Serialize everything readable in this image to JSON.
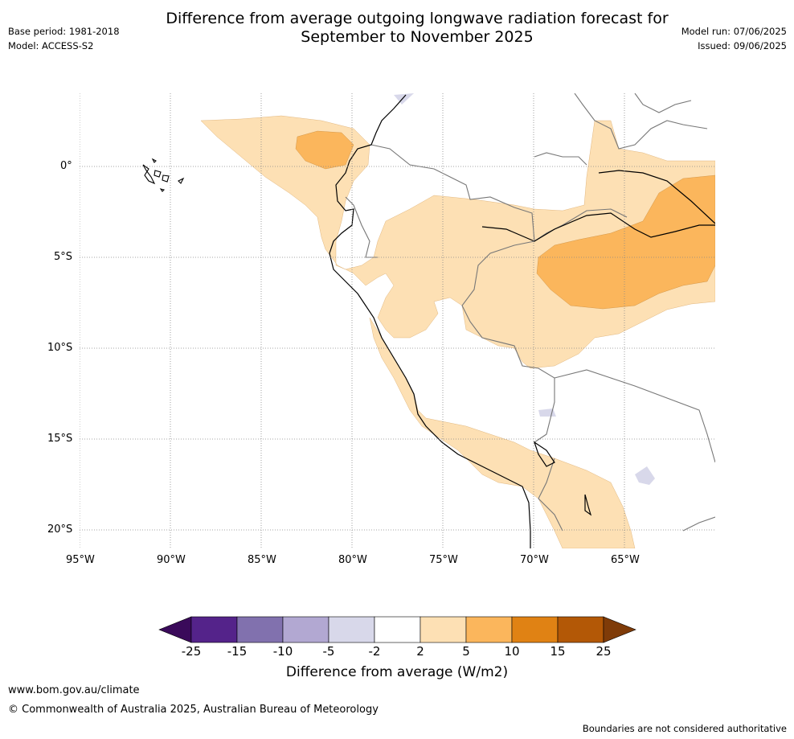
{
  "header": {
    "title_line1": "Difference from average outgoing longwave radiation forecast for",
    "title_line2": "September to November 2025",
    "base_period": "Base period: 1981-2018",
    "model": "Model: ACCESS-S2",
    "model_run": "Model run: 07/06/2025",
    "issued": "Issued: 09/06/2025"
  },
  "map": {
    "region": "Western South America (Peru)",
    "lon_labels": [
      "95°W",
      "90°W",
      "85°W",
      "80°W",
      "75°W",
      "70°W",
      "65°W"
    ],
    "lat_labels": [
      "0°",
      "5°S",
      "10°S",
      "15°S",
      "20°S"
    ],
    "anomaly_colors": {
      "2_to_5": "#fde0b4",
      "5_to_10": "#fbb65c",
      "-5_to_-2": "#d8d8ea"
    }
  },
  "colorbar": {
    "label": "Difference from average (W/m2)",
    "ticks": [
      "-25",
      "-15",
      "-10",
      "-5",
      "-2",
      "2",
      "5",
      "10",
      "15",
      "25"
    ],
    "colors": [
      "#3a0a5a",
      "#54238a",
      "#8171ae",
      "#b2a8d2",
      "#d8d8ea",
      "#ffffff",
      "#fde0b4",
      "#fbb65c",
      "#e08214",
      "#b35806",
      "#7f3b08"
    ]
  },
  "footer": {
    "url": "www.bom.gov.au/climate",
    "copyright": "© Commonwealth of Australia 2025, Australian Bureau of Meteorology",
    "note": "Boundaries are not considered authoritative"
  }
}
